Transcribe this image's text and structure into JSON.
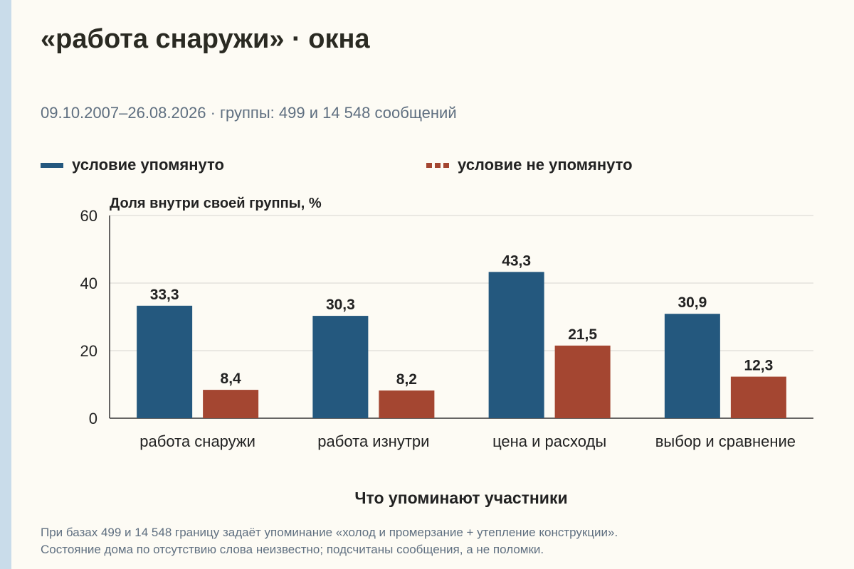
{
  "title": "«работа снаружи» · окна",
  "subtitle": "09.10.2007–26.08.2026 · группы: 499 и 14 548 сообщений",
  "footnote": {
    "line1": "При базах 499 и 14 548 границу задаёт упоминание «холод и промерзание + утепление конструкции».",
    "line2": "Состояние дома по отсутствию слова неизвестно; подсчитаны сообщения, а не поломки."
  },
  "chart_data": {
    "type": "bar",
    "xlabel": "Что упоминают участники",
    "ylabel": "Доля внутри своей группы, %",
    "ylim": [
      0,
      60
    ],
    "yticks": [
      0,
      20,
      40,
      60
    ],
    "grid": true,
    "legend_position": "top",
    "categories": [
      "работа снаружи",
      "работа изнутри",
      "цена и расходы",
      "выбор и сравнение"
    ],
    "series": [
      {
        "name": "условие упомянуто",
        "color": "#24587e",
        "style": "solid",
        "values": [
          33.3,
          30.3,
          43.3,
          30.9
        ],
        "labels": [
          "33,3",
          "30,3",
          "43,3",
          "30,9"
        ]
      },
      {
        "name": "условие не упомянуто",
        "color": "#a44631",
        "style": "dashed",
        "values": [
          8.4,
          8.2,
          21.5,
          12.3
        ],
        "labels": [
          "8,4",
          "8,2",
          "21,5",
          "12,3"
        ]
      }
    ]
  }
}
